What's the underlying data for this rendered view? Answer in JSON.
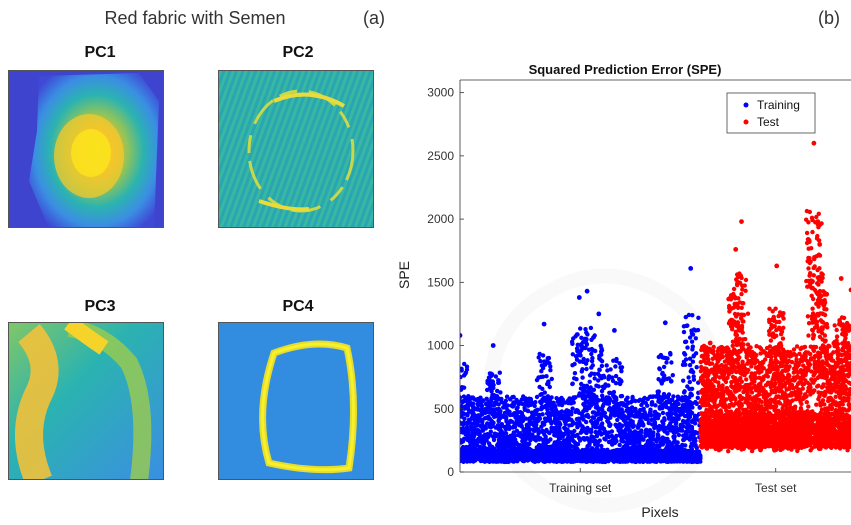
{
  "panel_a": {
    "title": "Red fabric with Semen",
    "label": "(a)",
    "images": [
      {
        "title": "PC1",
        "colormap": "parula"
      },
      {
        "title": "PC2",
        "colormap": "parula"
      },
      {
        "title": "PC3",
        "colormap": "parula"
      },
      {
        "title": "PC4",
        "colormap": "parula"
      }
    ]
  },
  "panel_b": {
    "label": "(b)"
  },
  "chart_data": {
    "type": "scatter",
    "title": "Squared Prediction Error (SPE)",
    "xlabel": "Pixels",
    "ylabel": "SPE",
    "ylim": [
      0,
      3100
    ],
    "yticks": [
      0,
      500,
      1000,
      1500,
      2000,
      2500,
      3000
    ],
    "x_category_ticks": [
      "Training set",
      "Test set"
    ],
    "x_range": [
      0,
      1
    ],
    "x_split": 0.615,
    "legend": {
      "position": "top-right"
    },
    "series": [
      {
        "name": "Training",
        "color": "#0000ff",
        "x_range": [
          0,
          0.615
        ],
        "typical_range": [
          100,
          600
        ],
        "peaks": [
          {
            "x": 0.0,
            "y": 1080
          },
          {
            "x": 0.085,
            "y": 1000
          },
          {
            "x": 0.215,
            "y": 1170
          },
          {
            "x": 0.305,
            "y": 1380
          },
          {
            "x": 0.325,
            "y": 1430
          },
          {
            "x": 0.355,
            "y": 1250
          },
          {
            "x": 0.395,
            "y": 1120
          },
          {
            "x": 0.525,
            "y": 1180
          },
          {
            "x": 0.59,
            "y": 1610
          }
        ]
      },
      {
        "name": "Test",
        "color": "#ff0000",
        "x_range": [
          0.615,
          1.0
        ],
        "typical_range": [
          200,
          1000
        ],
        "peaks": [
          {
            "x": 0.64,
            "y": 1020
          },
          {
            "x": 0.72,
            "y": 1980
          },
          {
            "x": 0.705,
            "y": 1760
          },
          {
            "x": 0.81,
            "y": 1630
          },
          {
            "x": 0.905,
            "y": 2600
          },
          {
            "x": 0.915,
            "y": 1980
          },
          {
            "x": 0.92,
            "y": 1800
          },
          {
            "x": 0.975,
            "y": 1530
          },
          {
            "x": 1.0,
            "y": 1440
          }
        ]
      }
    ]
  }
}
